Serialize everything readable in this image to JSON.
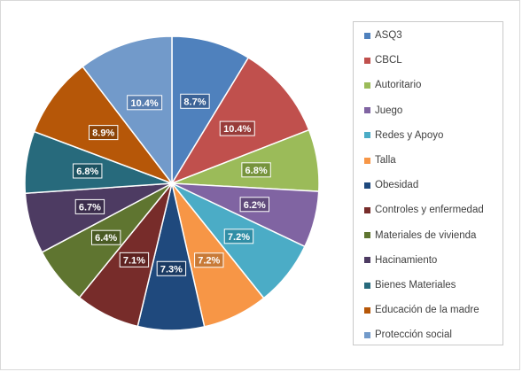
{
  "chart_data": {
    "type": "pie",
    "categories": [
      "ASQ3",
      "CBCL",
      "Autoritario",
      "Juego",
      "Redes y Apoyo",
      "Talla",
      "Obesidad",
      "Controles y enfermedad",
      "Materiales de vivienda",
      "Hacinamiento",
      "Bienes Materiales",
      "Educación de la madre",
      "Protección social"
    ],
    "values": [
      8.7,
      10.4,
      6.8,
      6.2,
      7.2,
      7.2,
      7.3,
      7.1,
      6.4,
      6.7,
      6.8,
      8.9,
      10.4
    ],
    "labels": [
      "8.7%",
      "10.4%",
      "6.8%",
      "6.2%",
      "7.2%",
      "7.2%",
      "7.3%",
      "7.1%",
      "6.4%",
      "6.7%",
      "6.8%",
      "8.9%",
      "10.4%"
    ],
    "colors": [
      "#4f81bd",
      "#c0504d",
      "#9bbb59",
      "#8064a2",
      "#4bacc6",
      "#f79646",
      "#1f497d",
      "#772c2a",
      "#5f7530",
      "#4d3b62",
      "#276a7c",
      "#b65708",
      "#729aca"
    ],
    "label_box_colors": [
      "#3b6296",
      "#983c3a",
      "#76933c",
      "#604a7b",
      "#318ea6",
      "#c87a37",
      "#1a3a63",
      "#5e2220",
      "#495a24",
      "#3b2d4c",
      "#1c5261",
      "#8c4306",
      "#5a7fb0"
    ],
    "title": "",
    "legend_position": "right"
  }
}
